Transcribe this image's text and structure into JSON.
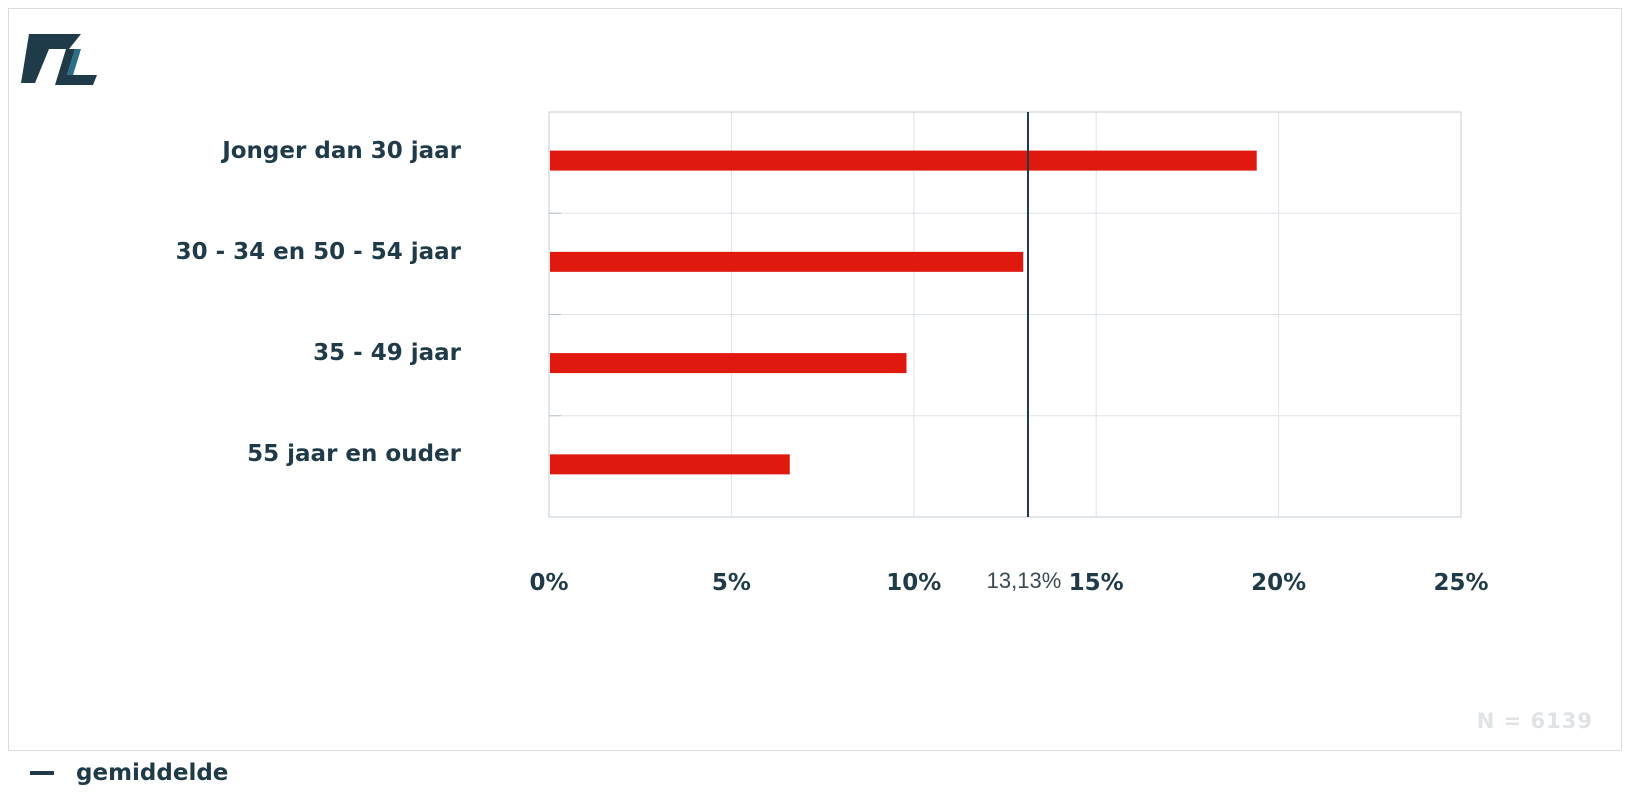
{
  "brand": {
    "logo_text": "7L",
    "logo_color": "#1f3b49",
    "logo_accent": "#2a6f86"
  },
  "chart_data": {
    "type": "bar",
    "orientation": "horizontal",
    "categories": [
      "Jonger dan 30 jaar",
      "30 - 34 en 50 - 54 jaar",
      "35 - 49 jaar",
      "55 jaar en ouder"
    ],
    "values": [
      19.4,
      13.0,
      9.8,
      6.6
    ],
    "unit": "%",
    "xlim": [
      0,
      25
    ],
    "xticks": [
      0,
      5,
      10,
      15,
      20,
      25
    ],
    "xtick_labels": [
      "0%",
      "5%",
      "10%",
      "15%",
      "20%",
      "25%"
    ],
    "reference_line": {
      "value": 13.13,
      "label": "13,13%"
    },
    "legend": [
      {
        "name": "gemiddelde",
        "marker": "line",
        "color": "#1f3b49"
      }
    ],
    "grid": true,
    "annotation": "N = 6139",
    "bar_color": "#e0190f"
  }
}
